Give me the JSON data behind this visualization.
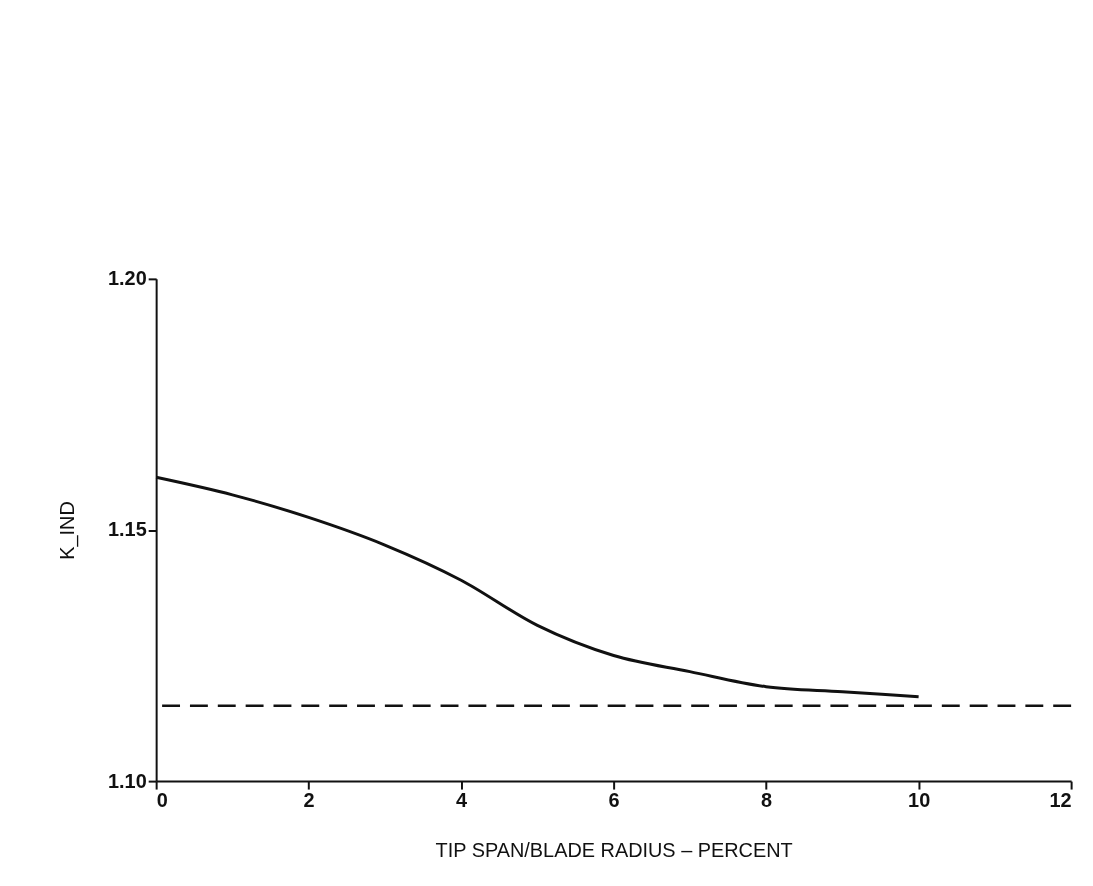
{
  "chart_data": {
    "type": "line",
    "xlabel": "TIP SPAN/BLADE RADIUS – PERCENT",
    "ylabel": "K_IND",
    "x": [
      0,
      1,
      2,
      3,
      4,
      5,
      6,
      7,
      8,
      9,
      10
    ],
    "series": [
      {
        "color": "#111111",
        "values": [
          1.1605,
          1.157,
          1.1525,
          1.147,
          1.14,
          1.131,
          1.125,
          1.1218,
          1.1188,
          1.1178,
          1.1168
        ]
      }
    ],
    "xlim": [
      0,
      12
    ],
    "xticks": [
      0,
      2,
      4,
      6,
      8,
      10,
      12
    ],
    "ylim": [
      1.1,
      1.2
    ],
    "yticks": [
      {
        "value": 1.1,
        "label": "1.10"
      },
      {
        "value": 1.15,
        "label": "1.15"
      },
      {
        "value": 1.2,
        "label": "1.20"
      }
    ],
    "ref_lines": [
      {
        "axis": "y",
        "value": 1.115,
        "label": null,
        "color": "#111111",
        "line_style": "dashed"
      }
    ],
    "grid": false,
    "marker": "none",
    "line_style": "solid"
  }
}
